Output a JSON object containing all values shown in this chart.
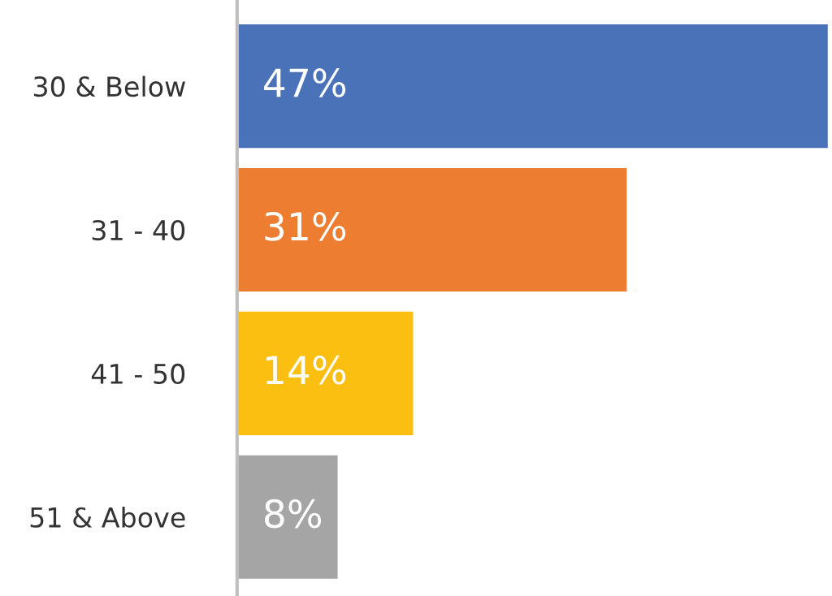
{
  "chart_data": {
    "type": "bar",
    "orientation": "horizontal",
    "categories": [
      "30 & Below",
      "31 - 40",
      "41 - 50",
      "51 & Above"
    ],
    "values": [
      47,
      31,
      14,
      8
    ],
    "colors": [
      "#4a72b8",
      "#ed7d31",
      "#fbbf12",
      "#a5a5a5"
    ],
    "value_labels": [
      "47%",
      "31%",
      "14%",
      "8%"
    ],
    "grid": false,
    "legend": false
  }
}
